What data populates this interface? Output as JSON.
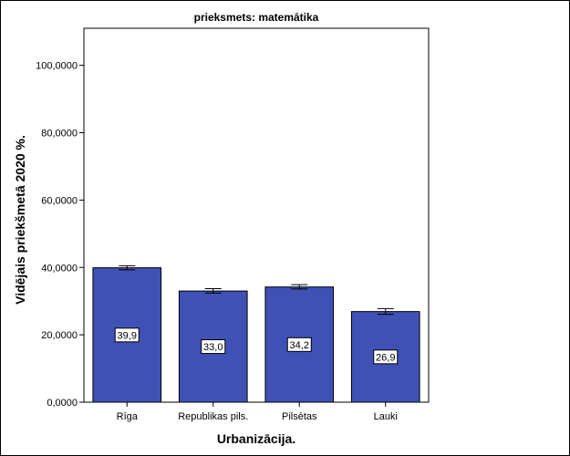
{
  "chart_data": {
    "type": "bar",
    "title": "prieksmets: matemātika",
    "xlabel": "Urbanizācija.",
    "ylabel": "Vidējais priekšmetā 2020 %.",
    "categories": [
      "Rīga",
      "Republikas pils.",
      "Pilsētas",
      "Lauki"
    ],
    "values": [
      39.9,
      33.0,
      34.2,
      26.9
    ],
    "data_labels": [
      "39,9",
      "33,0",
      "34,2",
      "26,9"
    ],
    "error_bars": [
      {
        "low": 39.3,
        "high": 40.5
      },
      {
        "low": 32.4,
        "high": 33.7
      },
      {
        "low": 33.6,
        "high": 34.9
      },
      {
        "low": 26.1,
        "high": 27.8
      }
    ],
    "yticks": [
      0,
      20,
      40,
      60,
      80,
      100
    ],
    "ytick_labels": [
      "0,0000",
      "20,0000",
      "40,0000",
      "60,0000",
      "80,0000",
      "100,0000"
    ],
    "ylim": [
      0,
      111
    ],
    "bar_color": "#3f51b5",
    "grid": false
  }
}
